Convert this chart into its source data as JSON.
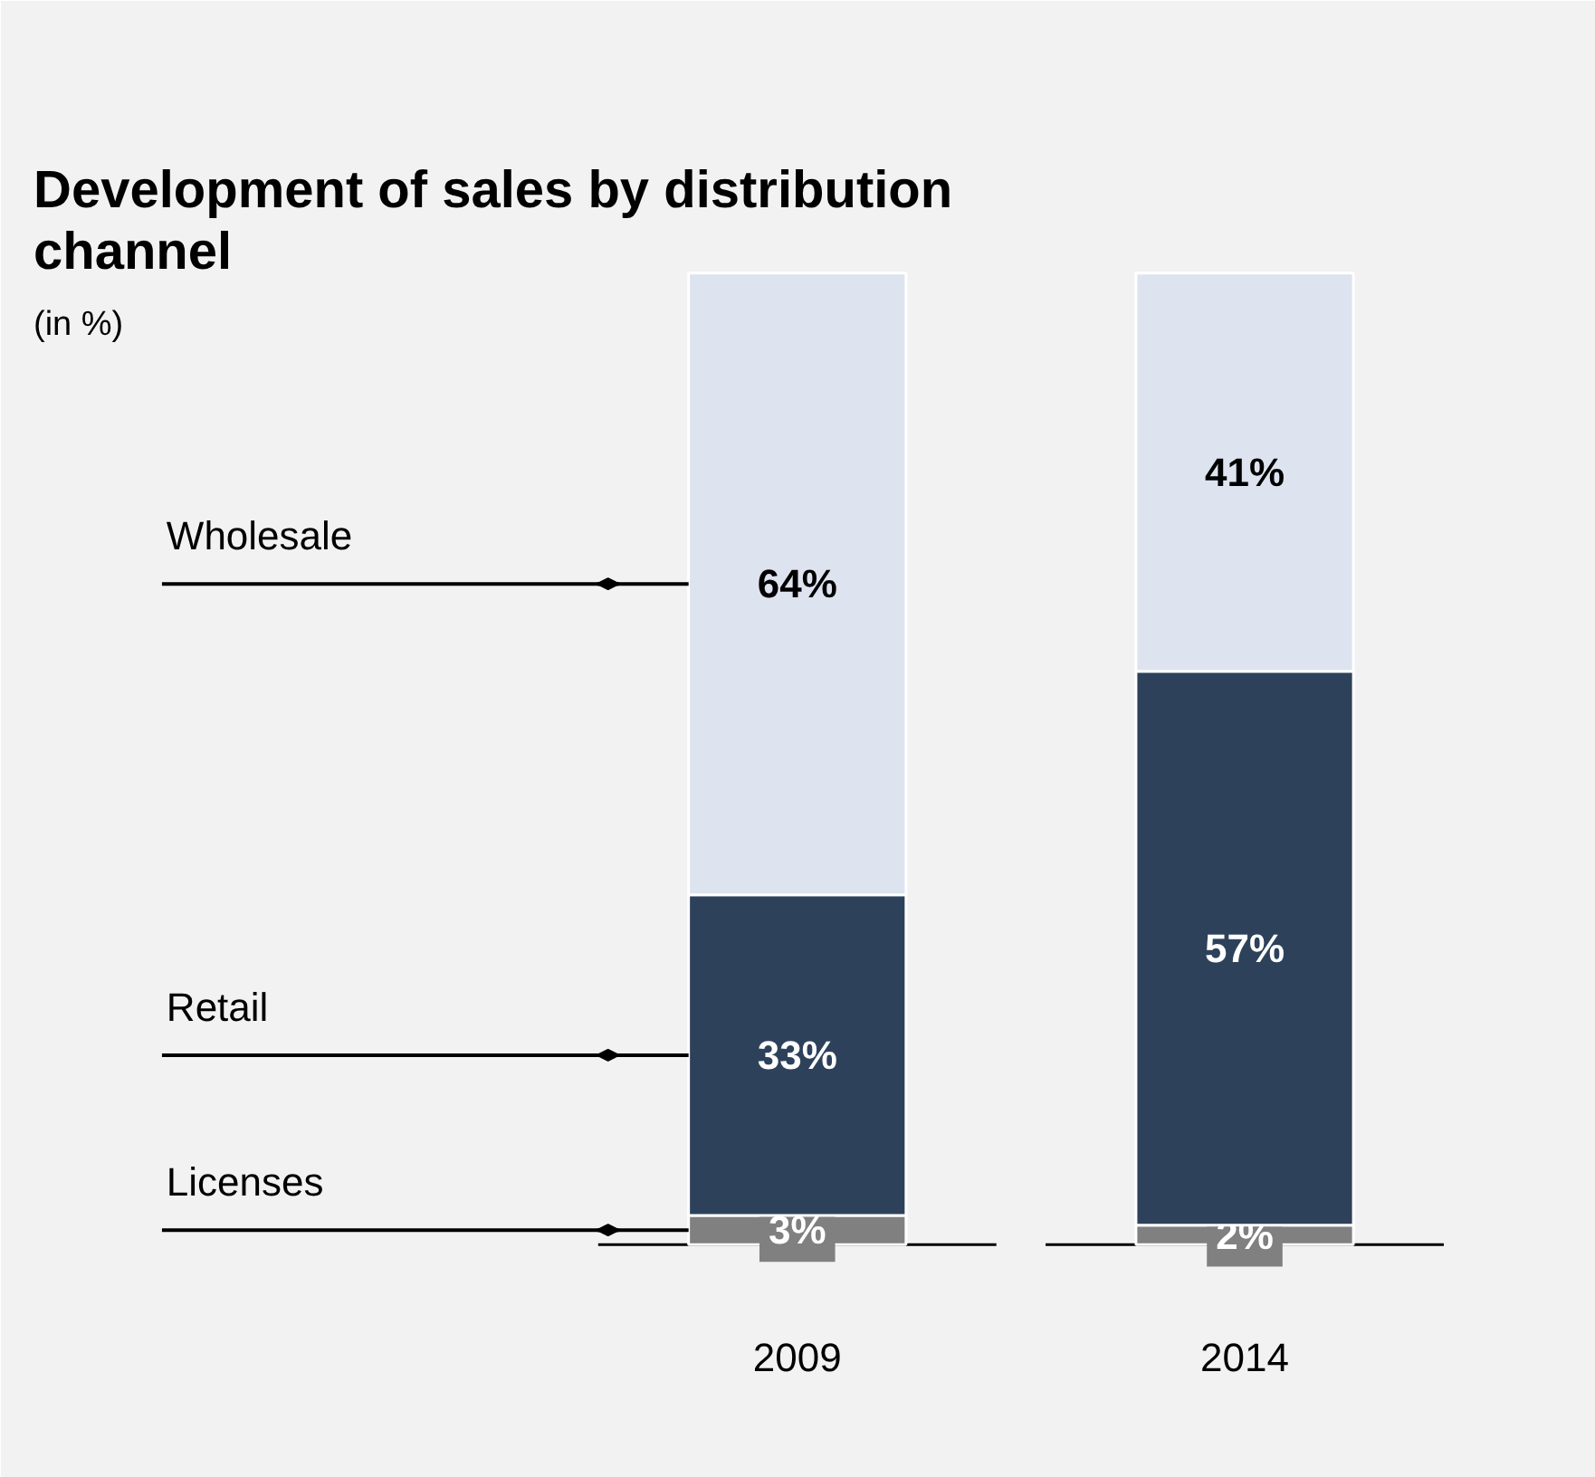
{
  "chart_data": {
    "type": "bar",
    "title": "Development of sales by distribution channel",
    "subtitle": "(in %)",
    "categories": [
      "2009",
      "2014"
    ],
    "stacked": true,
    "legend": "left",
    "series": [
      {
        "name": "Licenses",
        "color": "#808080",
        "values": [
          3,
          2
        ],
        "value_labels": [
          "3%",
          "2%"
        ]
      },
      {
        "name": "Retail",
        "color": "#2d415a",
        "values": [
          33,
          57
        ],
        "value_labels": [
          "33%",
          "57%"
        ]
      },
      {
        "name": "Wholesale",
        "color": "#dde3ef",
        "values": [
          64,
          41
        ],
        "value_labels": [
          "64%",
          "41%"
        ]
      }
    ]
  }
}
